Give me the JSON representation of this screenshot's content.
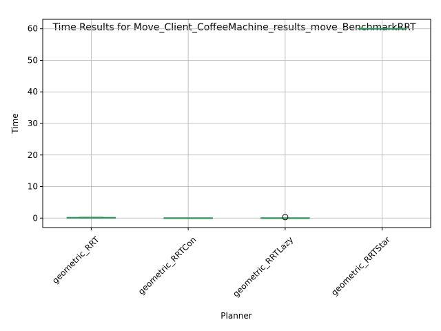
{
  "chart_data": {
    "type": "box",
    "title": "Time Results for Move_Client_CoffeeMachine_results_move_BenchmarkRRT",
    "xlabel": "Planner",
    "ylabel": "Time",
    "ylim": [
      -3,
      63
    ],
    "yticks": [
      0,
      10,
      20,
      30,
      40,
      50,
      60
    ],
    "grid": true,
    "categories": [
      "geometric_RRT",
      "geometric_RRTCon",
      "geometric_RRTLazy",
      "geometric_RRTStar"
    ],
    "boxes": [
      {
        "category": "geometric_RRT",
        "whisker_low": 0.02,
        "q1": 0.05,
        "median": 0.1,
        "q3": 0.15,
        "whisker_high": 0.25,
        "outliers": []
      },
      {
        "category": "geometric_RRTCon",
        "whisker_low": -0.05,
        "q1": -0.03,
        "median": -0.02,
        "q3": -0.01,
        "whisker_high": 0.0,
        "outliers": []
      },
      {
        "category": "geometric_RRTLazy",
        "whisker_low": -0.05,
        "q1": -0.03,
        "median": -0.02,
        "q3": 0.0,
        "whisker_high": 0.02,
        "outliers": [
          0.1
        ]
      },
      {
        "category": "geometric_RRTStar",
        "whisker_low": 60.0,
        "q1": 60.0,
        "median": 60.0,
        "q3": 60.0,
        "whisker_high": 60.0,
        "outliers": []
      }
    ],
    "colors": {
      "box": "#1f77b4",
      "median": "#2ca02c",
      "whisker": "#000000",
      "grid": "#b0b0b0"
    }
  }
}
